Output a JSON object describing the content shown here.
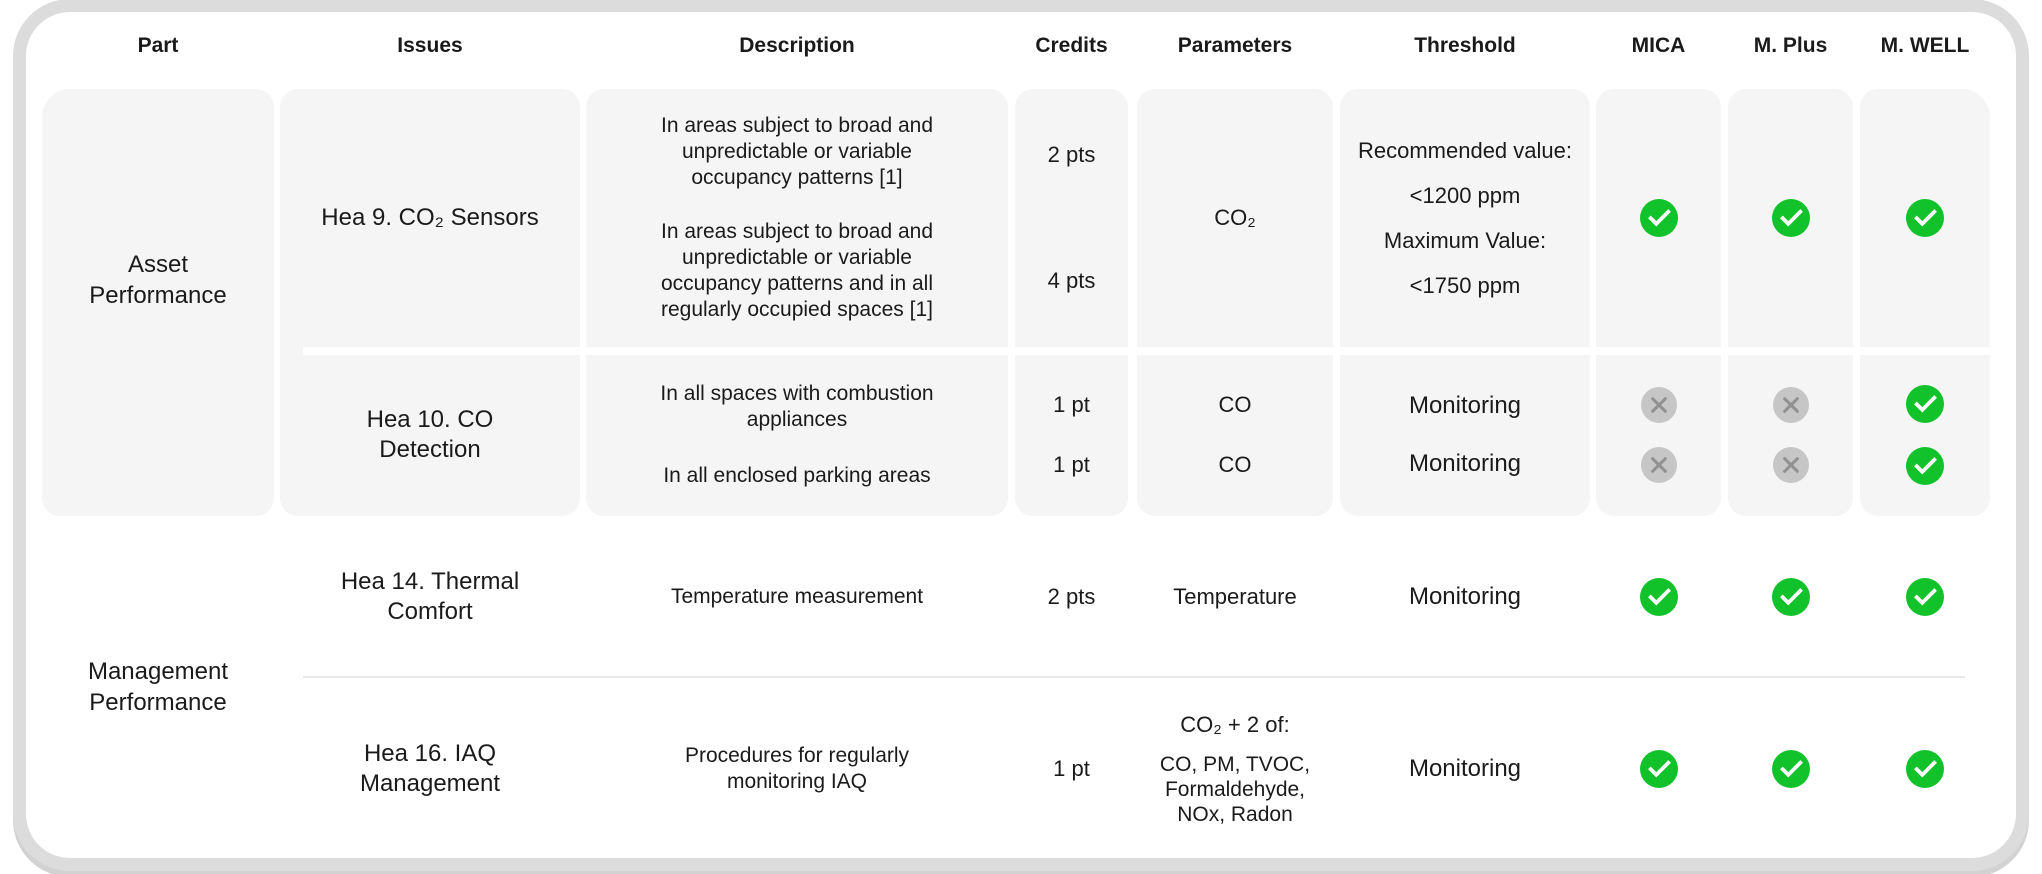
{
  "headers": [
    "Part",
    "Issues",
    "Description",
    "Credits",
    "Parameters",
    "Threshold",
    "MICA",
    "M. Plus",
    "M. WELL"
  ],
  "sections": [
    {
      "part": "Asset\nPerformance",
      "rows": [
        {
          "issue": "Hea 9. CO₂ Sensors",
          "descriptions": [
            "In areas subject to broad and\nunpredictable or variable\noccupancy patterns [1]",
            "In areas subject to broad and\nunpredictable or variable\noccupancy patterns and in all\nregularly occupied spaces [1]"
          ],
          "credits": [
            "2 pts",
            "4 pts"
          ],
          "parameter": "CO₂",
          "threshold": "Recommended value:\n<1200 ppm\nMaximum Value:\n<1750 ppm",
          "status": {
            "mica": "check",
            "mplus": "check",
            "mwell": "check"
          }
        },
        {
          "issue": "Hea 10. CO\nDetection",
          "subrows": [
            {
              "description": "In all spaces with combustion\nappliances",
              "credit": "1 pt",
              "parameter": "CO",
              "threshold": "Monitoring",
              "status": {
                "mica": "cross",
                "mplus": "cross",
                "mwell": "check"
              }
            },
            {
              "description": "In all enclosed parking areas",
              "credit": "1 pt",
              "parameter": "CO",
              "threshold": "Monitoring",
              "status": {
                "mica": "cross",
                "mplus": "cross",
                "mwell": "check"
              }
            }
          ]
        }
      ]
    },
    {
      "part": "Management\nPerformance",
      "rows": [
        {
          "issue": "Hea 14. Thermal\nComfort",
          "description": "Temperature measurement",
          "credit": "2 pts",
          "parameter": "Temperature",
          "threshold": "Monitoring",
          "status": {
            "mica": "check",
            "mplus": "check",
            "mwell": "check"
          }
        },
        {
          "issue": "Hea 16. IAQ\nManagement",
          "description": "Procedures for regularly\nmonitoring IAQ",
          "credit": "1 pt",
          "parameter_heading": "CO₂ + 2 of:",
          "parameter_list": "CO, PM, TVOC,\nFormaldehyde,\nNOx, Radon",
          "threshold": "Monitoring",
          "status": {
            "mica": "check",
            "mplus": "check",
            "mwell": "check"
          }
        }
      ]
    }
  ],
  "colors": {
    "green_check": "#12c22a",
    "cross_circle": "#c6c6c6",
    "cross_glyph": "#909090",
    "cell_background": "#f5f5f5",
    "card_ring": "#dcdcdc",
    "row_divider": "#e9e9e9"
  }
}
